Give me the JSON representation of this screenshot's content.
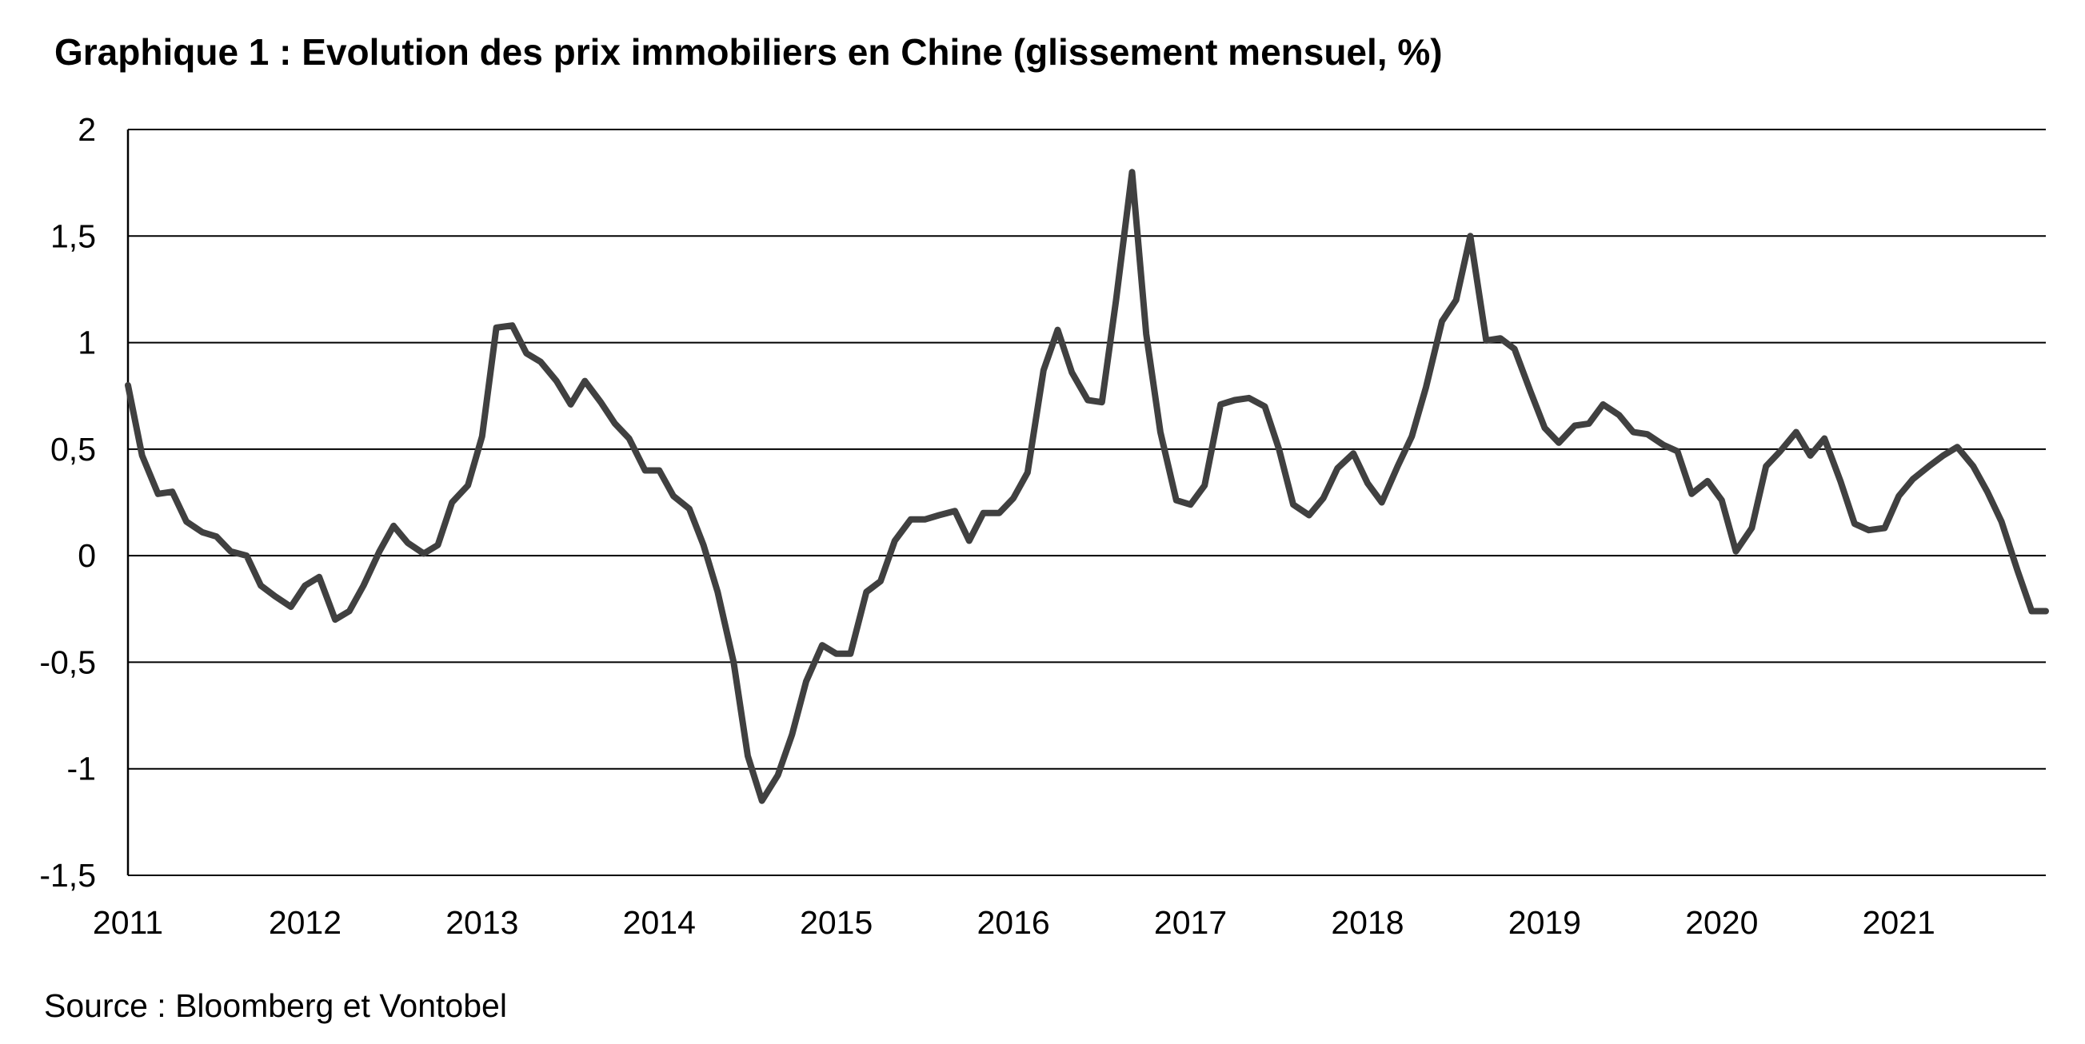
{
  "title": "Graphique 1 : Evolution des prix immobiliers en Chine (glissement mensuel, %)",
  "source": "Source : Bloomberg et Vontobel",
  "chart_data": {
    "type": "line",
    "title": "Graphique 1 : Evolution des prix immobiliers en Chine (glissement mensuel, %)",
    "xlabel": "",
    "ylabel": "",
    "ylim": [
      -1.5,
      2
    ],
    "xlim": [
      2011,
      2021.83
    ],
    "yticks": [
      {
        "value": 2,
        "label": "2"
      },
      {
        "value": 1.5,
        "label": "1,5"
      },
      {
        "value": 1,
        "label": "1"
      },
      {
        "value": 0.5,
        "label": "0,5"
      },
      {
        "value": 0,
        "label": "0"
      },
      {
        "value": -0.5,
        "label": "-0,5"
      },
      {
        "value": -1,
        "label": "-1"
      },
      {
        "value": -1.5,
        "label": "-1,5"
      }
    ],
    "xticks": [
      "2011",
      "2012",
      "2013",
      "2014",
      "2015",
      "2016",
      "2017",
      "2018",
      "2019",
      "2020",
      "2021"
    ],
    "grid": "horizontal",
    "line_color": "#404040",
    "series": [
      {
        "name": "",
        "x": [
          2011.0,
          2011.08,
          2011.17,
          2011.25,
          2011.33,
          2011.42,
          2011.5,
          2011.58,
          2011.67,
          2011.75,
          2011.83,
          2011.92,
          2012.0,
          2012.08,
          2012.17,
          2012.25,
          2012.33,
          2012.42,
          2012.5,
          2012.58,
          2012.67,
          2012.75,
          2012.83,
          2012.92,
          2013.0,
          2013.08,
          2013.17,
          2013.25,
          2013.33,
          2013.42,
          2013.5,
          2013.58,
          2013.67,
          2013.75,
          2013.83,
          2013.92,
          2014.0,
          2014.08,
          2014.17,
          2014.25,
          2014.33,
          2014.42,
          2014.5,
          2014.58,
          2014.67,
          2014.75,
          2014.83,
          2014.92,
          2015.0,
          2015.08,
          2015.17,
          2015.25,
          2015.33,
          2015.42,
          2015.5,
          2015.58,
          2015.67,
          2015.75,
          2015.83,
          2015.92,
          2016.0,
          2016.08,
          2016.17,
          2016.25,
          2016.33,
          2016.42,
          2016.5,
          2016.58,
          2016.67,
          2016.75,
          2016.83,
          2016.92,
          2017.0,
          2017.08,
          2017.17,
          2017.25,
          2017.33,
          2017.42,
          2017.5,
          2017.58,
          2017.67,
          2017.75,
          2017.83,
          2017.92,
          2018.0,
          2018.08,
          2018.17,
          2018.25,
          2018.33,
          2018.42,
          2018.5,
          2018.58,
          2018.67,
          2018.75,
          2018.83,
          2018.92,
          2019.0,
          2019.08,
          2019.17,
          2019.25,
          2019.33,
          2019.42,
          2019.5,
          2019.58,
          2019.67,
          2019.75,
          2019.83,
          2019.92,
          2020.0,
          2020.08,
          2020.17,
          2020.25,
          2020.33,
          2020.42,
          2020.5,
          2020.58,
          2020.67,
          2020.75,
          2020.83,
          2020.92,
          2021.0,
          2021.08,
          2021.17,
          2021.25,
          2021.33,
          2021.42,
          2021.5,
          2021.58,
          2021.67,
          2021.75,
          2021.83
        ],
        "values": [
          0.8,
          0.47,
          0.29,
          0.3,
          0.16,
          0.11,
          0.09,
          0.02,
          0.0,
          -0.14,
          -0.19,
          -0.24,
          -0.14,
          -0.1,
          -0.3,
          -0.26,
          -0.14,
          0.02,
          0.14,
          0.06,
          0.01,
          0.05,
          0.25,
          0.33,
          0.56,
          1.07,
          1.08,
          0.95,
          0.91,
          0.82,
          0.71,
          0.82,
          0.72,
          0.62,
          0.55,
          0.4,
          0.4,
          0.28,
          0.22,
          0.05,
          -0.17,
          -0.5,
          -0.94,
          -1.15,
          -1.03,
          -0.84,
          -0.59,
          -0.42,
          -0.46,
          -0.46,
          -0.17,
          -0.12,
          0.07,
          0.17,
          0.17,
          0.19,
          0.21,
          0.07,
          0.2,
          0.2,
          0.27,
          0.39,
          0.87,
          1.06,
          0.86,
          0.73,
          0.72,
          1.2,
          1.8,
          1.04,
          0.58,
          0.26,
          0.24,
          0.33,
          0.71,
          0.73,
          0.74,
          0.7,
          0.5,
          0.24,
          0.19,
          0.27,
          0.41,
          0.48,
          0.34,
          0.25,
          0.42,
          0.56,
          0.79,
          1.1,
          1.2,
          1.5,
          1.01,
          1.02,
          0.97,
          0.77,
          0.6,
          0.53,
          0.61,
          0.62,
          0.71,
          0.66,
          0.58,
          0.57,
          0.52,
          0.49,
          0.29,
          0.35,
          0.26,
          0.02,
          0.13,
          0.42,
          0.49,
          0.58,
          0.47,
          0.55,
          0.35,
          0.15,
          0.12,
          0.13,
          0.28,
          0.36,
          0.42,
          0.47,
          0.51,
          0.42,
          0.3,
          0.16,
          -0.07,
          -0.26,
          -0.26
        ]
      }
    ]
  }
}
